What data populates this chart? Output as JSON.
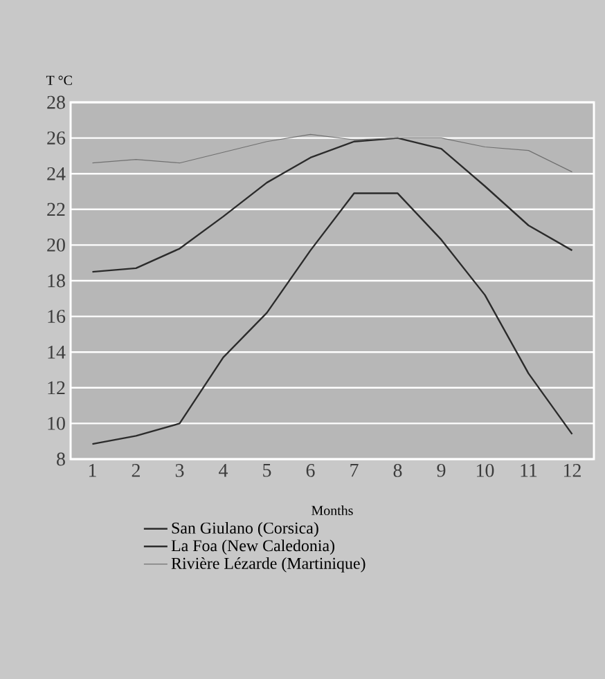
{
  "chart_data": {
    "type": "line",
    "xlabel": "Months",
    "ylabel": "T °C",
    "categories": [
      "1",
      "2",
      "3",
      "4",
      "5",
      "6",
      "7",
      "8",
      "9",
      "10",
      "11",
      "12"
    ],
    "series": [
      {
        "name": "San Giulano (Corsica)",
        "color": "#2b2b2b",
        "values": [
          8.85,
          9.3,
          10.0,
          13.7,
          16.2,
          19.7,
          22.9,
          22.9,
          20.3,
          17.2,
          12.8,
          9.4
        ]
      },
      {
        "name": "La Foa (New Caledonia)",
        "color": "#2b2b2b",
        "values": [
          18.5,
          18.7,
          19.8,
          21.6,
          23.5,
          24.9,
          25.8,
          26.0,
          25.4,
          23.3,
          21.1,
          19.7
        ]
      },
      {
        "name": "Rivière Lézarde (Martinique)",
        "color": "#707070",
        "values": [
          24.6,
          24.8,
          24.6,
          25.2,
          25.8,
          26.2,
          25.9,
          26.0,
          26.0,
          25.5,
          25.3,
          24.1
        ]
      }
    ],
    "ylim": [
      8,
      28
    ],
    "yticks": [
      8,
      10,
      12,
      14,
      16,
      18,
      20,
      22,
      24,
      26,
      28
    ],
    "grid": "y",
    "legend": "bottom",
    "marker": "none",
    "line_style": "solid"
  }
}
